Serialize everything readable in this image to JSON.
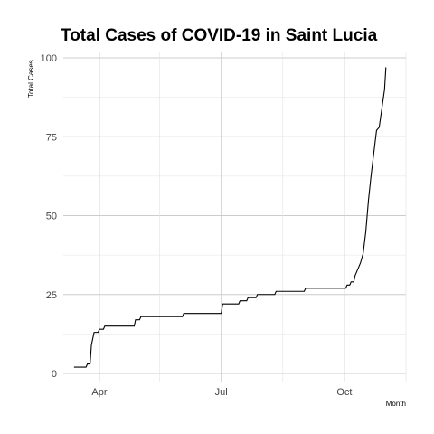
{
  "chart_data": {
    "type": "line",
    "title": "Total Cases of COVID-19 in Saint Lucia",
    "xlabel": "Month",
    "ylabel": "Total Cases",
    "xlim": [
      "2020-03-05",
      "2020-11-16"
    ],
    "ylim": [
      0,
      100
    ],
    "grid": true,
    "x_ticks": [
      {
        "label": "Apr",
        "date": "2020-04-01"
      },
      {
        "label": "Jul",
        "date": "2020-07-01"
      },
      {
        "label": "Oct",
        "date": "2020-10-01"
      }
    ],
    "x_minor_ticks": [
      "2020-05-16",
      "2020-08-16",
      "2020-11-16"
    ],
    "y_ticks": [
      0,
      25,
      50,
      75,
      100
    ],
    "series": [
      {
        "color": "#000000",
        "points": [
          [
            "2020-03-13",
            2
          ],
          [
            "2020-03-22",
            2
          ],
          [
            "2020-03-23",
            3
          ],
          [
            "2020-03-25",
            3
          ],
          [
            "2020-03-26",
            9
          ],
          [
            "2020-03-27",
            11
          ],
          [
            "2020-03-28",
            13
          ],
          [
            "2020-03-31",
            13
          ],
          [
            "2020-04-01",
            14
          ],
          [
            "2020-04-04",
            14
          ],
          [
            "2020-04-05",
            15
          ],
          [
            "2020-04-27",
            15
          ],
          [
            "2020-04-28",
            17
          ],
          [
            "2020-05-01",
            17
          ],
          [
            "2020-05-02",
            18
          ],
          [
            "2020-06-02",
            18
          ],
          [
            "2020-06-03",
            19
          ],
          [
            "2020-07-01",
            19
          ],
          [
            "2020-07-02",
            22
          ],
          [
            "2020-07-14",
            22
          ],
          [
            "2020-07-15",
            23
          ],
          [
            "2020-07-20",
            23
          ],
          [
            "2020-07-21",
            24
          ],
          [
            "2020-07-27",
            24
          ],
          [
            "2020-07-28",
            25
          ],
          [
            "2020-08-10",
            25
          ],
          [
            "2020-08-11",
            26
          ],
          [
            "2020-09-01",
            26
          ],
          [
            "2020-09-02",
            27
          ],
          [
            "2020-10-02",
            27
          ],
          [
            "2020-10-03",
            28
          ],
          [
            "2020-10-05",
            28
          ],
          [
            "2020-10-06",
            29
          ],
          [
            "2020-10-08",
            29
          ],
          [
            "2020-10-09",
            31
          ],
          [
            "2020-10-11",
            33
          ],
          [
            "2020-10-13",
            35
          ],
          [
            "2020-10-15",
            38
          ],
          [
            "2020-10-17",
            45
          ],
          [
            "2020-10-19",
            55
          ],
          [
            "2020-10-21",
            63
          ],
          [
            "2020-10-23",
            70
          ],
          [
            "2020-10-25",
            77
          ],
          [
            "2020-10-27",
            78
          ],
          [
            "2020-10-29",
            84
          ],
          [
            "2020-10-31",
            90
          ],
          [
            "2020-11-01",
            97
          ]
        ]
      }
    ]
  }
}
